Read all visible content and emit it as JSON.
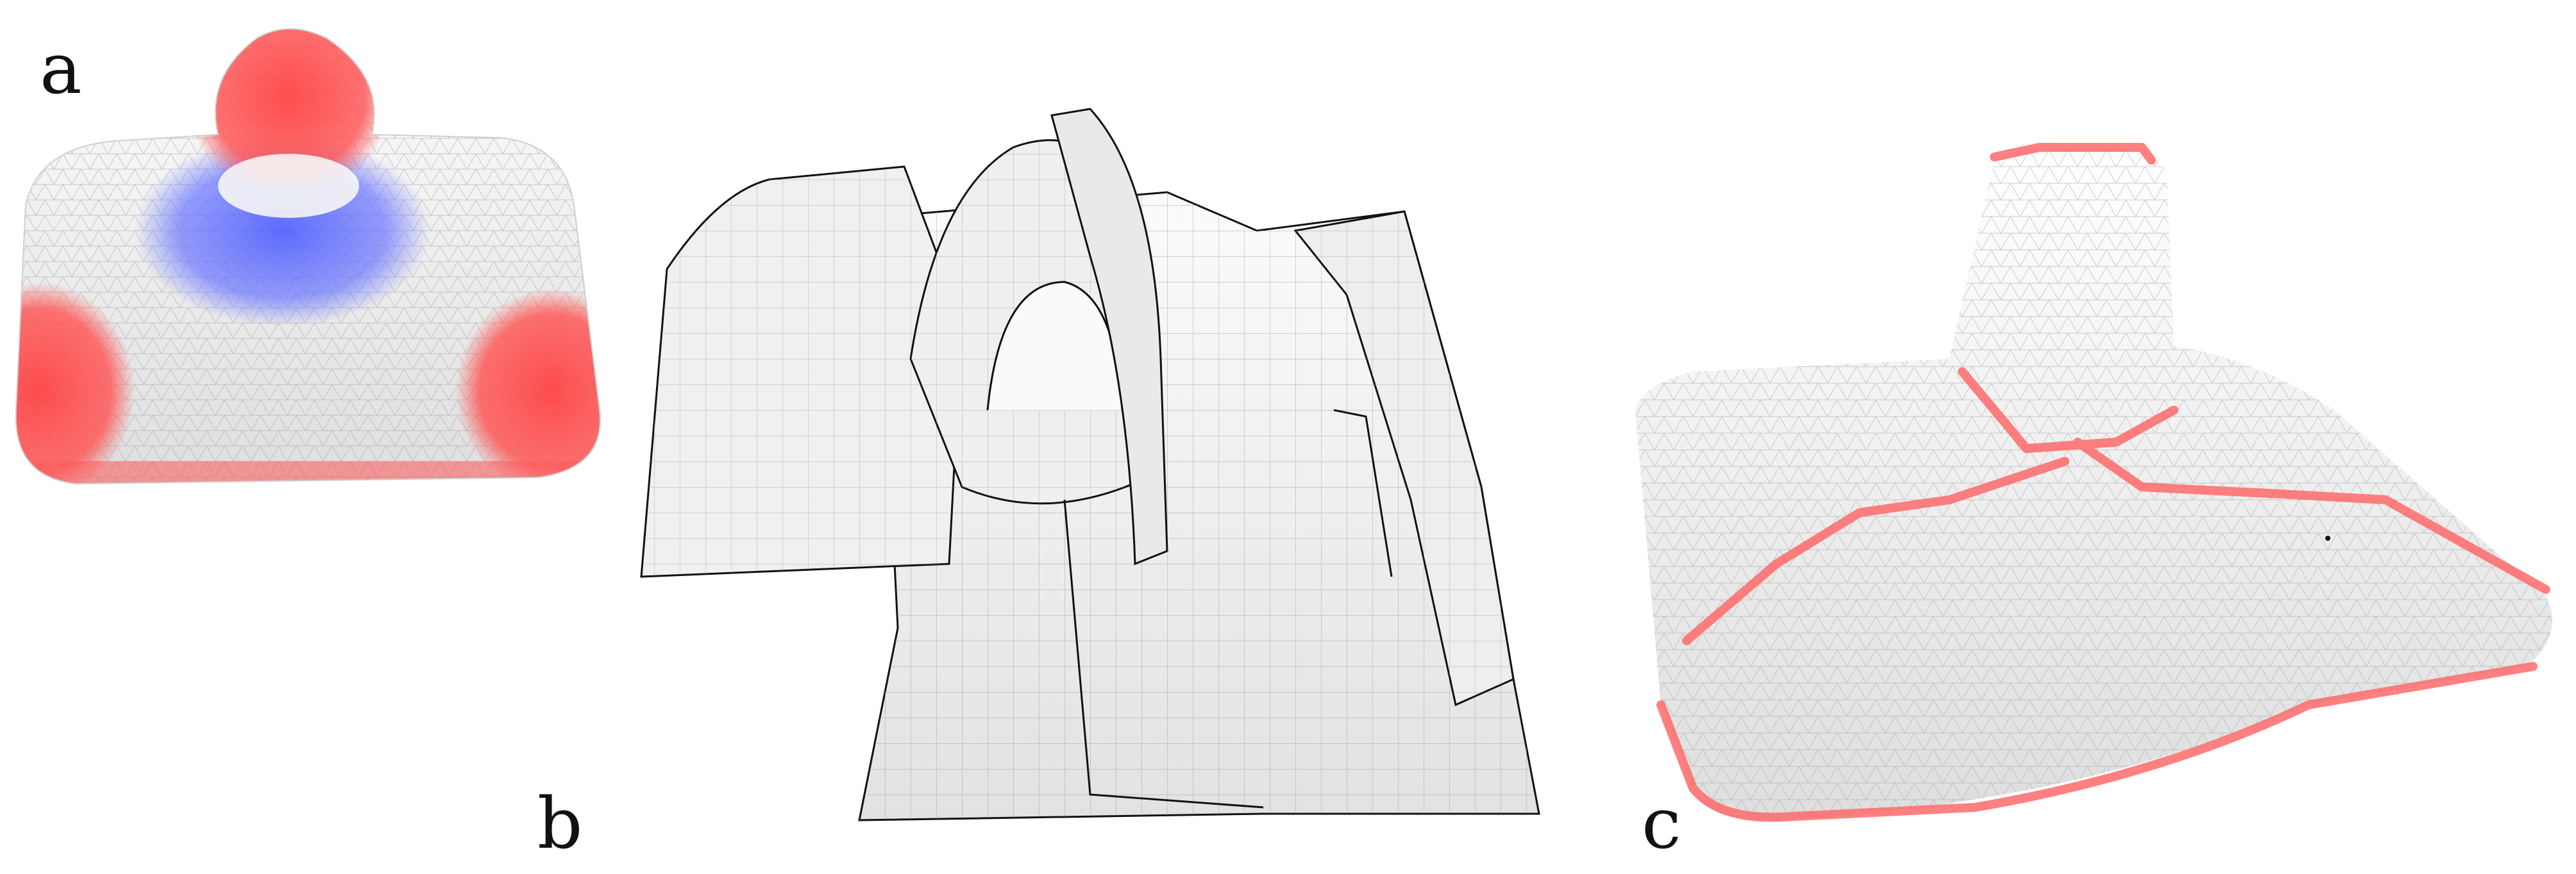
{
  "figure": {
    "panels": [
      {
        "id": "a",
        "label": "a",
        "kind": "colored-triangle-mesh",
        "colors": {
          "surface": "#f4f4f4",
          "high": "#ff4d4d",
          "low": "#4d5cff",
          "wire": "#9a9a9a"
        }
      },
      {
        "id": "b",
        "label": "b",
        "kind": "quad-patch-layout",
        "colors": {
          "surface": "#f1f1f1",
          "outline": "#111111",
          "wire": "#8f8f8f"
        }
      },
      {
        "id": "c",
        "label": "c",
        "kind": "segmented-mesh",
        "colors": {
          "surface": "#f4f4f4",
          "seam": "#ff6a6a",
          "wire": "#a0a0a0"
        }
      }
    ]
  }
}
